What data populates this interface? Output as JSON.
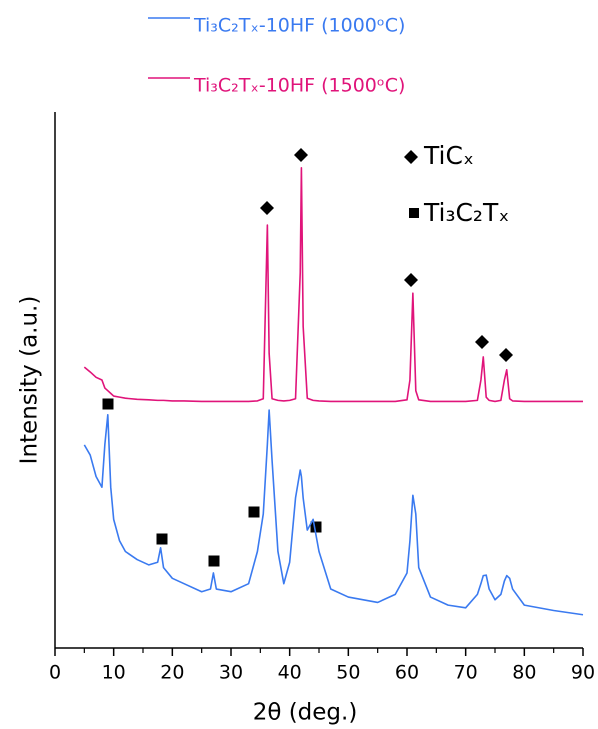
{
  "chart_data": {
    "type": "line",
    "x_label": "2θ (deg.)",
    "y_label": "Intensity (a.u.)",
    "legend": "top",
    "annotations": [
      "TiCₓ",
      "Ti₃C₂Tₓ"
    ],
    "xlim": [
      0,
      90
    ],
    "xticks": [
      0,
      10,
      20,
      30,
      40,
      50,
      60,
      70,
      80,
      90
    ],
    "ylim": [
      0,
      100
    ],
    "x": [
      5,
      6,
      7,
      8,
      8.5,
      9,
      9.5,
      10,
      11,
      12,
      14,
      16,
      17.5,
      18,
      18.5,
      20,
      22,
      25,
      26.5,
      27,
      27.5,
      30,
      33,
      34.5,
      35.5,
      36.2,
      36.5,
      37,
      38,
      39,
      40,
      41,
      41.8,
      42,
      42.3,
      43,
      44,
      45,
      47,
      50,
      55,
      58,
      60,
      60.5,
      61,
      61.5,
      62,
      64,
      67,
      70,
      72,
      72.6,
      73,
      73.5,
      74,
      75,
      76,
      76.6,
      77,
      77.5,
      78,
      80,
      85,
      90
    ],
    "series": [
      {
        "name": "Ti₃C₂Tₓ-10HF (1000ᵒC)",
        "color": "#3a7af0",
        "values": [
          37.9,
          36,
          32,
          30,
          38,
          43.5,
          30,
          24,
          20,
          18,
          16.5,
          15.5,
          16,
          18.7,
          15,
          13,
          12,
          10.5,
          11,
          14,
          11,
          10.5,
          12,
          18,
          25,
          38,
          44.4,
          35,
          18,
          12,
          16,
          28,
          33.2,
          32,
          28,
          22,
          24,
          18,
          11,
          9.5,
          8.5,
          10,
          14,
          20,
          28.5,
          25,
          15,
          9.5,
          8,
          7.5,
          10,
          12,
          13.5,
          13.6,
          11,
          9,
          10,
          12.5,
          13.5,
          13,
          11,
          8,
          7,
          6.2
        ]
      },
      {
        "name": "Ti₃C₂Tₓ-10HF (1500ᵒC)",
        "color": "#e0147a",
        "values": [
          52.4,
          51.5,
          50.5,
          50,
          48.5,
          48,
          47.5,
          47,
          46.8,
          46.6,
          46.4,
          46.3,
          46.2,
          46.2,
          46.2,
          46.1,
          46.1,
          46,
          46,
          46,
          46,
          46,
          46,
          46.1,
          46.5,
          78.9,
          55,
          46.5,
          46.2,
          46.1,
          46.2,
          46.5,
          70,
          89.6,
          60,
          46.6,
          46.2,
          46.1,
          46,
          46,
          46,
          46,
          46.3,
          50,
          66.2,
          48,
          46.3,
          46,
          46,
          46,
          46.2,
          50,
          54.3,
          46.8,
          46.2,
          46,
          46.2,
          50,
          51.9,
          46.5,
          46.1,
          46,
          46,
          46
        ]
      }
    ]
  }
}
